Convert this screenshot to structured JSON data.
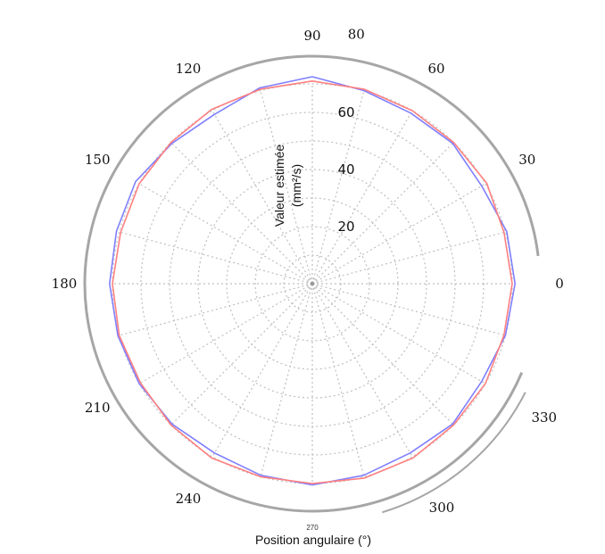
{
  "chart_data": {
    "type": "line",
    "subtype": "polar",
    "angular_axis": {
      "label": "Position angulaire (°)",
      "ticks": [
        0,
        30,
        60,
        80,
        90,
        120,
        150,
        180,
        210,
        240,
        270,
        300,
        330
      ]
    },
    "radial_axis": {
      "label_line1": "Valeur estimée",
      "label_line2": "(mm²/s)",
      "ticks": [
        20,
        40,
        60
      ],
      "range": [
        0,
        75
      ]
    },
    "grid": true,
    "colors": {
      "series_blue": "#7f7fff",
      "series_red": "#ff8080",
      "grid": "#bfbfbf",
      "ring": "#a6a6a6"
    },
    "x": [
      0,
      15,
      30,
      45,
      60,
      75,
      90,
      105,
      120,
      135,
      150,
      165,
      180,
      195,
      210,
      225,
      240,
      255,
      270,
      285,
      300,
      315,
      330,
      345
    ],
    "series": [
      {
        "values": [
          71.0,
          70.5,
          68.5,
          69.5,
          69.0,
          70.0,
          72.5,
          71.0,
          68.5,
          69.5,
          71.5,
          71.0,
          71.0,
          70.5,
          70.0,
          69.5,
          68.5,
          69.5,
          70.5,
          69.5,
          68.5,
          69.5,
          68.5,
          70.0
        ]
      },
      {
        "values": [
          70.0,
          69.5,
          70.5,
          70.0,
          70.0,
          70.5,
          71.0,
          70.5,
          70.5,
          70.0,
          70.0,
          69.5,
          70.0,
          70.0,
          69.5,
          70.0,
          70.5,
          70.0,
          70.0,
          70.5,
          70.5,
          70.0,
          70.0,
          69.5
        ]
      }
    ]
  }
}
